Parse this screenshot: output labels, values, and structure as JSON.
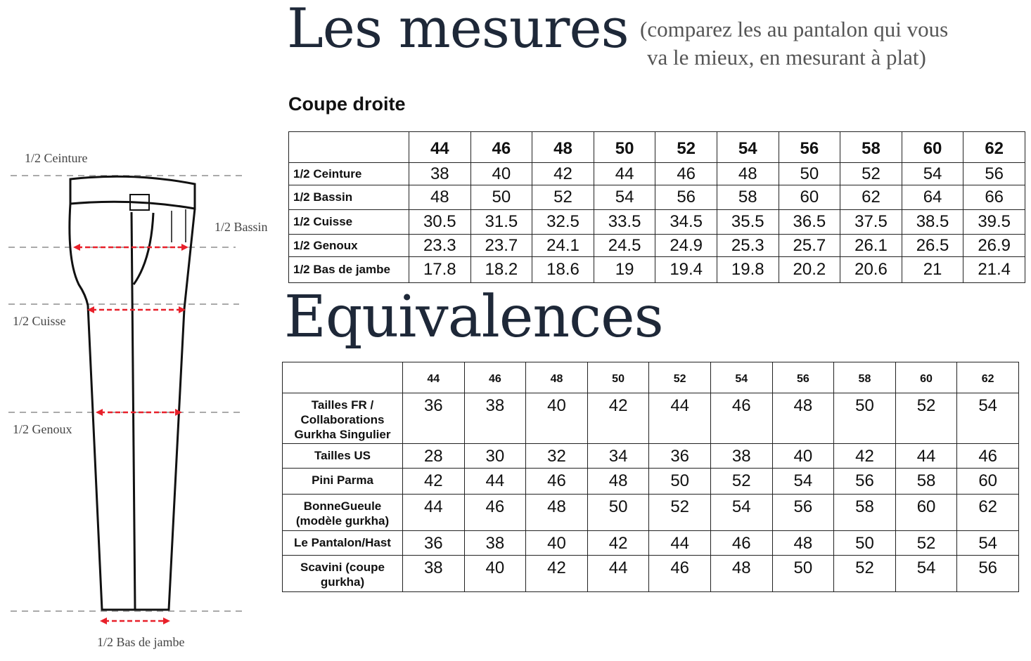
{
  "header": {
    "title": "Les mesures",
    "subtitle_line1": "(comparez les au pantalon qui vous",
    "subtitle_line2": "va le mieux, en mesurant à plat)"
  },
  "diagram": {
    "labels": {
      "ceinture": "1/2 Ceinture",
      "bassin": "1/2 Bassin",
      "cuisse": "1/2 Cuisse",
      "genoux": "1/2 Genoux",
      "bas": "1/2 Bas de jambe"
    },
    "arrow_color": "#e8202a"
  },
  "measures": {
    "title": "Coupe droite",
    "sizes": [
      "44",
      "46",
      "48",
      "50",
      "52",
      "54",
      "56",
      "58",
      "60",
      "62"
    ],
    "rows": [
      {
        "label": "1/2 Ceinture",
        "values": [
          "38",
          "40",
          "42",
          "44",
          "46",
          "48",
          "50",
          "52",
          "54",
          "56"
        ]
      },
      {
        "label": "1/2 Bassin",
        "values": [
          "48",
          "50",
          "52",
          "54",
          "56",
          "58",
          "60",
          "62",
          "64",
          "66"
        ]
      },
      {
        "label": "1/2 Cuisse",
        "values": [
          "30.5",
          "31.5",
          "32.5",
          "33.5",
          "34.5",
          "35.5",
          "36.5",
          "37.5",
          "38.5",
          "39.5"
        ]
      },
      {
        "label": "1/2 Genoux",
        "values": [
          "23.3",
          "23.7",
          "24.1",
          "24.5",
          "24.9",
          "25.3",
          "25.7",
          "26.1",
          "26.5",
          "26.9"
        ]
      },
      {
        "label": "1/2 Bas de jambe",
        "values": [
          "17.8",
          "18.2",
          "18.6",
          "19",
          "19.4",
          "19.8",
          "20.2",
          "20.6",
          "21",
          "21.4"
        ]
      }
    ]
  },
  "equivalences": {
    "title": "Equivalences",
    "sizes": [
      "44",
      "46",
      "48",
      "50",
      "52",
      "54",
      "56",
      "58",
      "60",
      "62"
    ],
    "rows": [
      {
        "label": "Tailles FR / Collaborations Gurkha Singulier",
        "values": [
          "36",
          "38",
          "40",
          "42",
          "44",
          "46",
          "48",
          "50",
          "52",
          "54"
        ]
      },
      {
        "label": "Tailles US",
        "values": [
          "28",
          "30",
          "32",
          "34",
          "36",
          "38",
          "40",
          "42",
          "44",
          "46"
        ]
      },
      {
        "label": "Pini Parma",
        "values": [
          "42",
          "44",
          "46",
          "48",
          "50",
          "52",
          "54",
          "56",
          "58",
          "60"
        ]
      },
      {
        "label": "BonneGueule (modèle gurkha)",
        "values": [
          "44",
          "46",
          "48",
          "50",
          "52",
          "54",
          "56",
          "58",
          "60",
          "62"
        ]
      },
      {
        "label": "Le Pantalon/Hast",
        "values": [
          "36",
          "38",
          "40",
          "42",
          "44",
          "46",
          "48",
          "50",
          "52",
          "54"
        ]
      },
      {
        "label": "Scavini (coupe gurkha)",
        "values": [
          "38",
          "40",
          "42",
          "44",
          "46",
          "48",
          "50",
          "52",
          "54",
          "56"
        ]
      }
    ]
  }
}
